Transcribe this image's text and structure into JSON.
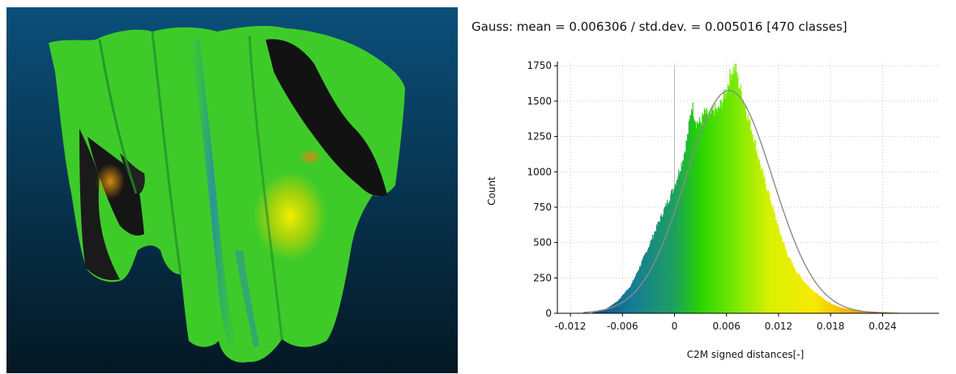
{
  "viewport": {
    "background_top": "#0b4f7a",
    "background_bottom": "#041824"
  },
  "chart_data": {
    "type": "bar",
    "title": "Gauss: mean = 0.006306 / std.dev. = 0.005016 [470 classes]",
    "xlabel": "C2M signed distances[-]",
    "ylabel": "Count",
    "xlim": [
      -0.0135,
      0.0305
    ],
    "ylim": [
      0,
      1780
    ],
    "x_ticks": [
      -0.012,
      -0.006,
      0,
      0.006,
      0.012,
      0.018,
      0.024
    ],
    "x_tick_labels": [
      "-0.012",
      "-0.006",
      "0",
      "0.006",
      "0.012",
      "0.018",
      "0.024"
    ],
    "y_ticks": [
      0,
      250,
      500,
      750,
      1000,
      1250,
      1500,
      1750
    ],
    "y_tick_labels": [
      "0",
      "250",
      "500",
      "750",
      "1000",
      "1250",
      "1500",
      "1750"
    ],
    "grid": true,
    "gauss": {
      "mean": 0.006306,
      "std": 0.005016,
      "peak": 1575
    },
    "classes": 470,
    "histogram_profile": {
      "x": [
        -0.0095,
        -0.008,
        -0.0065,
        -0.005,
        -0.004,
        -0.003,
        -0.002,
        -0.001,
        0.0,
        0.001,
        0.0015,
        0.002,
        0.0025,
        0.003,
        0.0035,
        0.004,
        0.0045,
        0.005,
        0.0055,
        0.006,
        0.0065,
        0.007,
        0.0075,
        0.008,
        0.0085,
        0.009,
        0.0095,
        0.01,
        0.011,
        0.012,
        0.013,
        0.014,
        0.015,
        0.016,
        0.017,
        0.018,
        0.019,
        0.02,
        0.022,
        0.024,
        0.026,
        0.027
      ],
      "y": [
        5,
        25,
        90,
        200,
        330,
        470,
        620,
        760,
        900,
        1100,
        1250,
        1480,
        1350,
        1350,
        1420,
        1380,
        1440,
        1430,
        1500,
        1580,
        1700,
        1740,
        1600,
        1500,
        1380,
        1280,
        1150,
        1020,
        820,
        600,
        420,
        300,
        220,
        160,
        110,
        70,
        45,
        30,
        15,
        8,
        3,
        0
      ],
      "colors": [
        "#0e3f74",
        "#157a99",
        "#1ba05e",
        "#28d400",
        "#78ea00",
        "#d8f000",
        "#f7ea00",
        "#f2a400",
        "#d4701a"
      ],
      "color_stops": [
        -0.011,
        -0.005,
        0.0,
        0.003,
        0.007,
        0.011,
        0.016,
        0.021,
        0.026
      ]
    }
  }
}
